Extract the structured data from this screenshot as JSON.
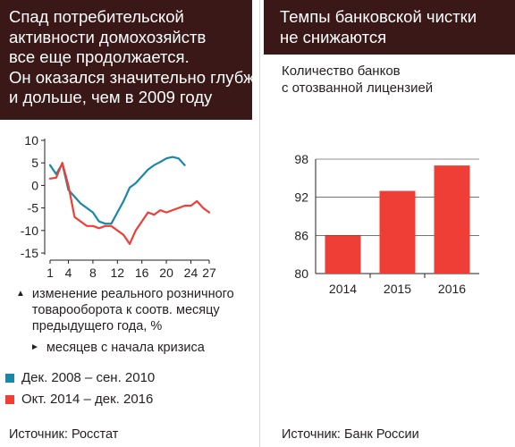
{
  "left": {
    "title_lines": [
      "Спад потребительской",
      "активности домохозяйств",
      "все еще продолжается.",
      "Он оказался значительно глубже",
      "и дольше, чем в 2009 году"
    ],
    "legend": {
      "y_marker": "▲",
      "y_text_lines": [
        "изменение реального розничного",
        "товарооборота к соотв. месяцу",
        "предыдущего года, %"
      ],
      "x_marker": "►",
      "x_text": "месяцев с начала кризиса"
    },
    "source": "Источник: Росстат"
  },
  "right": {
    "title_lines": [
      "Темпы банковской чистки",
      "не снижаются"
    ],
    "subtitle_lines": [
      "Количество банков",
      "с отозванной лицензией"
    ],
    "source": "Источник: Банк России"
  },
  "colors": {
    "teal": "#1b87a6",
    "red": "#ef3e36",
    "title_bg": "#3a1818"
  },
  "chart_data": [
    {
      "type": "line",
      "xlabel": "месяцев с начала кризиса",
      "ylabel": "изменение реального розничного товарооборота к соотв. месяцу предыдущего года, %",
      "xlim": [
        1,
        27
      ],
      "ylim": [
        -15,
        10
      ],
      "x_ticks": [
        1,
        4,
        8,
        12,
        16,
        20,
        24,
        27
      ],
      "y_ticks": [
        10,
        5,
        0,
        -5,
        -10,
        -15
      ],
      "grid": false,
      "series": [
        {
          "name": "Дек. 2008 – сен. 2010",
          "color": "#1b87a6",
          "points": [
            [
              1,
              4.5
            ],
            [
              2,
              2.5
            ],
            [
              3,
              4.8
            ],
            [
              4,
              -1
            ],
            [
              5,
              -2.5
            ],
            [
              6,
              -4
            ],
            [
              7,
              -5
            ],
            [
              8,
              -6
            ],
            [
              9,
              -8
            ],
            [
              10,
              -8.5
            ],
            [
              11,
              -8.5
            ],
            [
              12,
              -6
            ],
            [
              13,
              -3.5
            ],
            [
              14,
              -0.5
            ],
            [
              15,
              0.5
            ],
            [
              16,
              2
            ],
            [
              17,
              3.5
            ],
            [
              18,
              4.5
            ],
            [
              19,
              5.2
            ],
            [
              20,
              6
            ],
            [
              21,
              6.3
            ],
            [
              22,
              6
            ],
            [
              23,
              4.5
            ]
          ]
        },
        {
          "name": "Окт. 2014 – дек. 2016",
          "color": "#ef3e36",
          "points": [
            [
              1,
              1.5
            ],
            [
              2,
              1.7
            ],
            [
              3,
              5
            ],
            [
              4,
              0
            ],
            [
              5,
              -7
            ],
            [
              6,
              -8
            ],
            [
              7,
              -9
            ],
            [
              8,
              -9
            ],
            [
              9,
              -9.5
            ],
            [
              10,
              -9
            ],
            [
              11,
              -9
            ],
            [
              12,
              -10
            ],
            [
              13,
              -11
            ],
            [
              14,
              -13
            ],
            [
              15,
              -10
            ],
            [
              16,
              -8
            ],
            [
              17,
              -6
            ],
            [
              18,
              -6.5
            ],
            [
              19,
              -5.5
            ],
            [
              20,
              -6
            ],
            [
              21,
              -5.5
            ],
            [
              22,
              -5
            ],
            [
              23,
              -4.5
            ],
            [
              24,
              -4.5
            ],
            [
              25,
              -3.5
            ],
            [
              26,
              -5
            ],
            [
              27,
              -6
            ]
          ]
        }
      ]
    },
    {
      "type": "bar",
      "title": "",
      "categories": [
        "2014",
        "2015",
        "2016"
      ],
      "values": [
        86,
        93,
        97
      ],
      "ylim": [
        80,
        98
      ],
      "y_ticks": [
        98,
        92,
        86,
        80
      ],
      "grid": true,
      "color": "#ef3e36"
    }
  ]
}
